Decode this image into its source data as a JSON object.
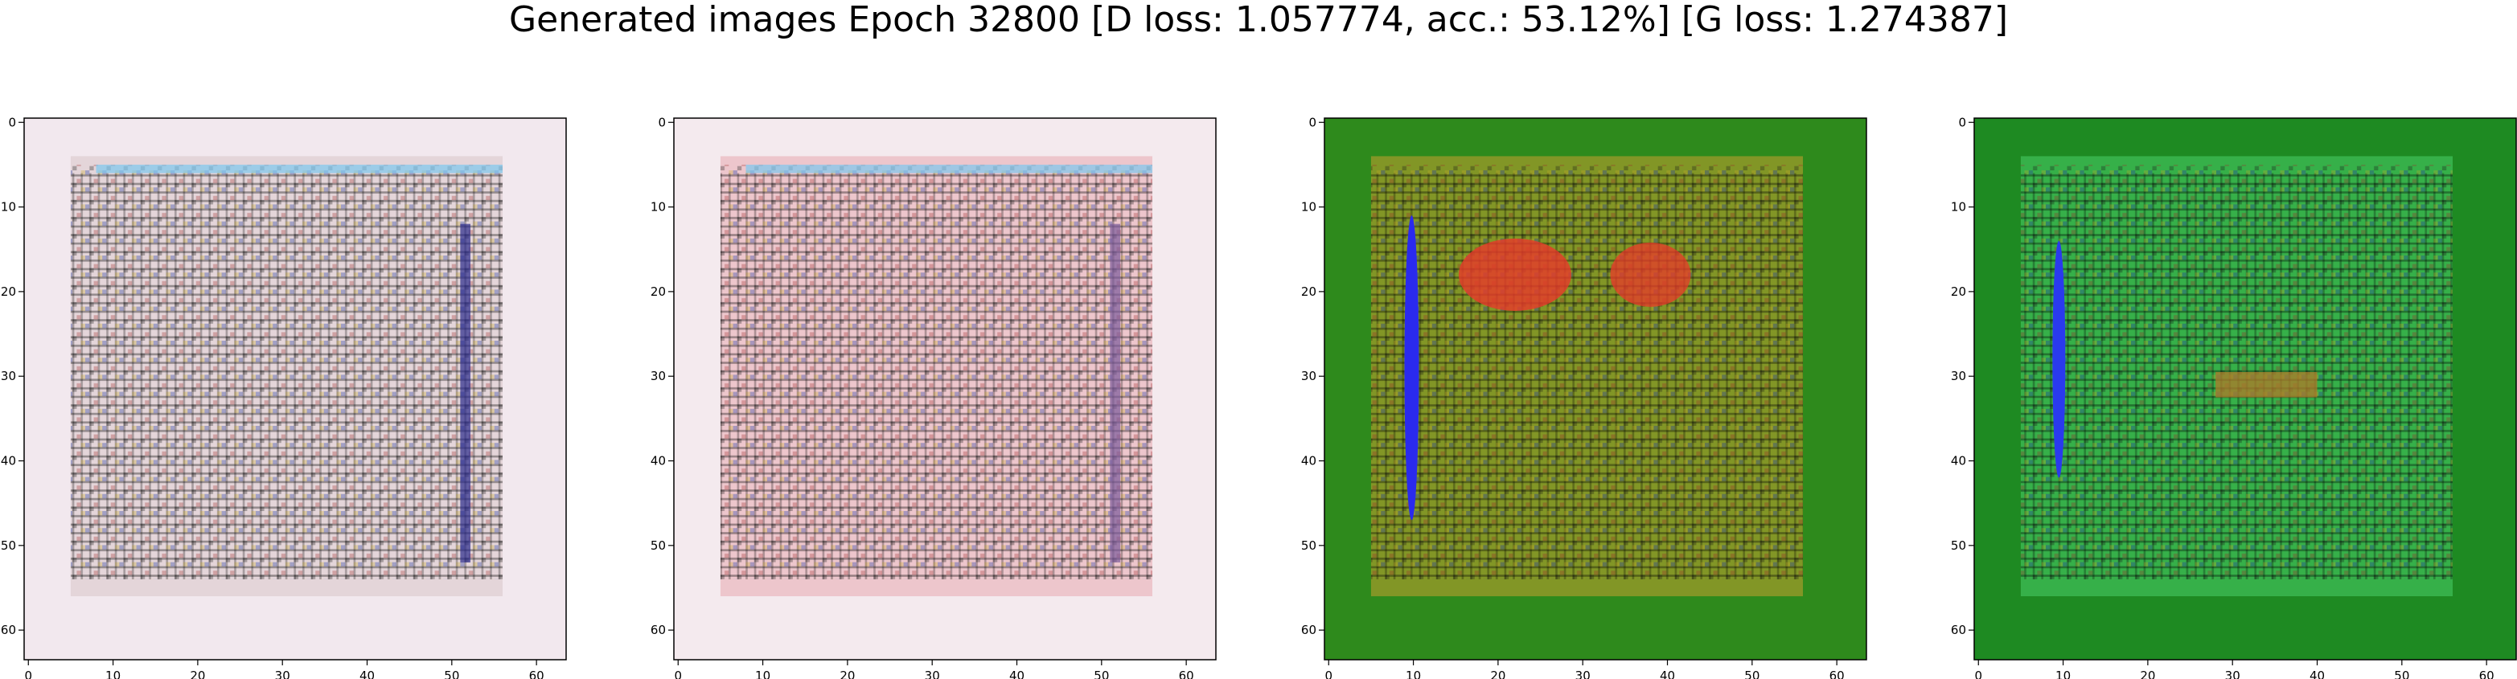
{
  "title": "Generated images Epoch 32800 [D loss: 1.057774, acc.: 53.12%] [G loss: 1.274387]",
  "chart_data": [
    {
      "type": "heatmap",
      "panel": "generated-image-1",
      "xlim": [
        0,
        63
      ],
      "ylim": [
        63,
        0
      ],
      "xticks": [
        0,
        10,
        20,
        30,
        40,
        50,
        60
      ],
      "yticks": [
        0,
        10,
        20,
        30,
        40,
        50,
        60
      ],
      "x_tick_labels": [
        "0",
        "10",
        "20",
        "30",
        "40",
        "50",
        "60"
      ],
      "y_tick_labels": [
        "0",
        "10",
        "20",
        "30",
        "40",
        "50",
        "60"
      ],
      "dominant_colors": [
        "#f2e8ee",
        "#d8c4c8",
        "#1a1a1a",
        "#2a2a8a"
      ],
      "background_color": "#f2e8ee"
    },
    {
      "type": "heatmap",
      "panel": "generated-image-2",
      "xlim": [
        0,
        63
      ],
      "ylim": [
        63,
        0
      ],
      "xticks": [
        0,
        10,
        20,
        30,
        40,
        50,
        60
      ],
      "yticks": [
        0,
        10,
        20,
        30,
        40,
        50,
        60
      ],
      "x_tick_labels": [
        "0",
        "10",
        "20",
        "30",
        "40",
        "50",
        "60"
      ],
      "y_tick_labels": [
        "0",
        "10",
        "20",
        "30",
        "40",
        "50",
        "60"
      ],
      "dominant_colors": [
        "#f4eaee",
        "#e8a8b0",
        "#1e1e1e",
        "#7a5a9a"
      ],
      "background_color": "#f4eaee"
    },
    {
      "type": "heatmap",
      "panel": "generated-image-3",
      "xlim": [
        0,
        63
      ],
      "ylim": [
        63,
        0
      ],
      "xticks": [
        0,
        10,
        20,
        30,
        40,
        50,
        60
      ],
      "yticks": [
        0,
        10,
        20,
        30,
        40,
        50,
        60
      ],
      "x_tick_labels": [
        "0",
        "10",
        "20",
        "30",
        "40",
        "50",
        "60"
      ],
      "y_tick_labels": [
        "0",
        "10",
        "20",
        "30",
        "40",
        "50",
        "60"
      ],
      "dominant_colors": [
        "#2e8a1c",
        "#c8a030",
        "#e83a2a",
        "#2a2aee",
        "#1a1a0a"
      ],
      "background_color": "#2e8a1c"
    },
    {
      "type": "heatmap",
      "panel": "generated-image-4",
      "xlim": [
        0,
        63
      ],
      "ylim": [
        63,
        0
      ],
      "xticks": [
        0,
        10,
        20,
        30,
        40,
        50,
        60
      ],
      "yticks": [
        0,
        10,
        20,
        30,
        40,
        50,
        60
      ],
      "x_tick_labels": [
        "0",
        "10",
        "20",
        "30",
        "40",
        "50",
        "60"
      ],
      "y_tick_labels": [
        "0",
        "10",
        "20",
        "30",
        "40",
        "50",
        "60"
      ],
      "dominant_colors": [
        "#1e8a22",
        "#4ad06a",
        "#0c3a0c",
        "#2a3aee",
        "#b07a2a"
      ],
      "background_color": "#1e8a22"
    }
  ]
}
